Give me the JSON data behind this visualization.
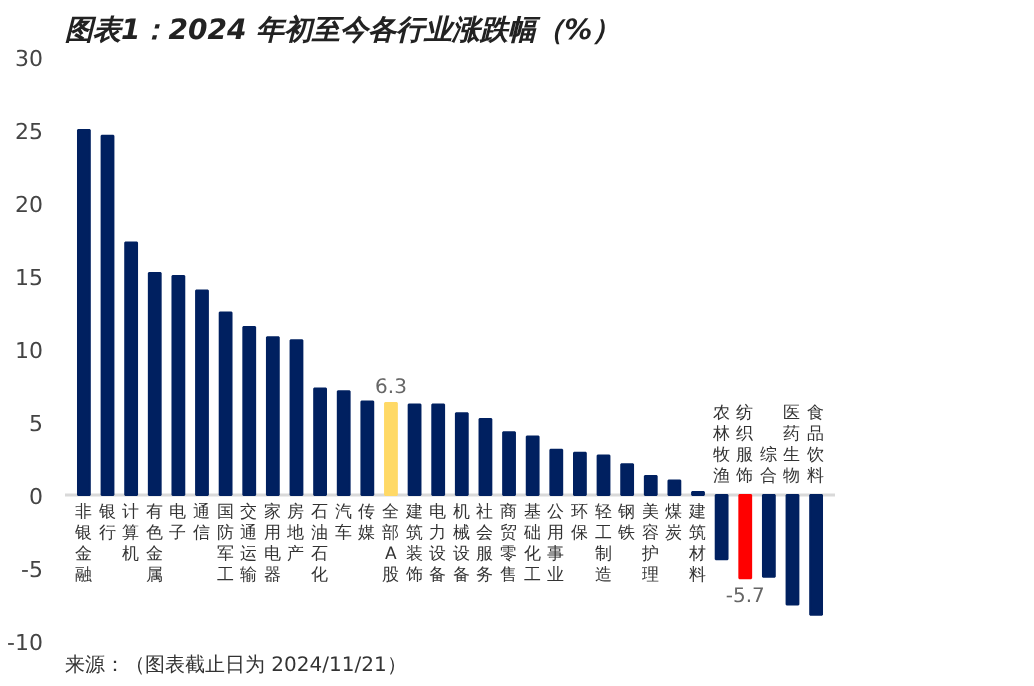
{
  "chart_data": {
    "type": "bar",
    "title": "图表1：2024 年初至今各行业涨跌幅（%）",
    "categories": [
      "非银金融",
      "银行",
      "计算机",
      "有色金属",
      "电子",
      "通信",
      "国防军工",
      "交通运输",
      "家用电器",
      "房地产",
      "石油石化",
      "汽车",
      "传媒",
      "全部A股",
      "建筑装饰",
      "电力设备",
      "机械设备",
      "社会服务",
      "商贸零售",
      "基础化工",
      "公用事业",
      "环保",
      "轻工制造",
      "钢铁",
      "美容护理",
      "煤炭",
      "建筑材料",
      "农林牧渔",
      "纺织服饰",
      "综合",
      "医药生物",
      "食品饮料"
    ],
    "values": [
      25.0,
      24.6,
      17.3,
      15.2,
      15.0,
      14.0,
      12.5,
      11.5,
      10.8,
      10.6,
      7.3,
      7.1,
      6.4,
      6.3,
      6.2,
      6.2,
      5.6,
      5.2,
      4.3,
      4.0,
      3.1,
      2.9,
      2.7,
      2.1,
      1.3,
      1.0,
      0.2,
      -4.4,
      -5.7,
      -5.6,
      -7.5,
      -8.2
    ],
    "colors": [
      "#002060",
      "#002060",
      "#002060",
      "#002060",
      "#002060",
      "#002060",
      "#002060",
      "#002060",
      "#002060",
      "#002060",
      "#002060",
      "#002060",
      "#002060",
      "#ffd966",
      "#002060",
      "#002060",
      "#002060",
      "#002060",
      "#002060",
      "#002060",
      "#002060",
      "#002060",
      "#002060",
      "#002060",
      "#002060",
      "#002060",
      "#002060",
      "#002060",
      "#ff0000",
      "#002060",
      "#002060",
      "#002060"
    ],
    "value_labels": [
      null,
      null,
      null,
      null,
      null,
      null,
      null,
      null,
      null,
      null,
      null,
      null,
      null,
      "6.3",
      null,
      null,
      null,
      null,
      null,
      null,
      null,
      null,
      null,
      null,
      null,
      null,
      null,
      null,
      "-5.7",
      null,
      null,
      null
    ],
    "ylim": [
      -10,
      30
    ],
    "yticks": [
      -10,
      -5,
      0,
      5,
      10,
      15,
      20,
      25,
      30
    ],
    "grid": false,
    "annotations": [
      "来源：（图表截止日为 2024/11/21）"
    ]
  }
}
